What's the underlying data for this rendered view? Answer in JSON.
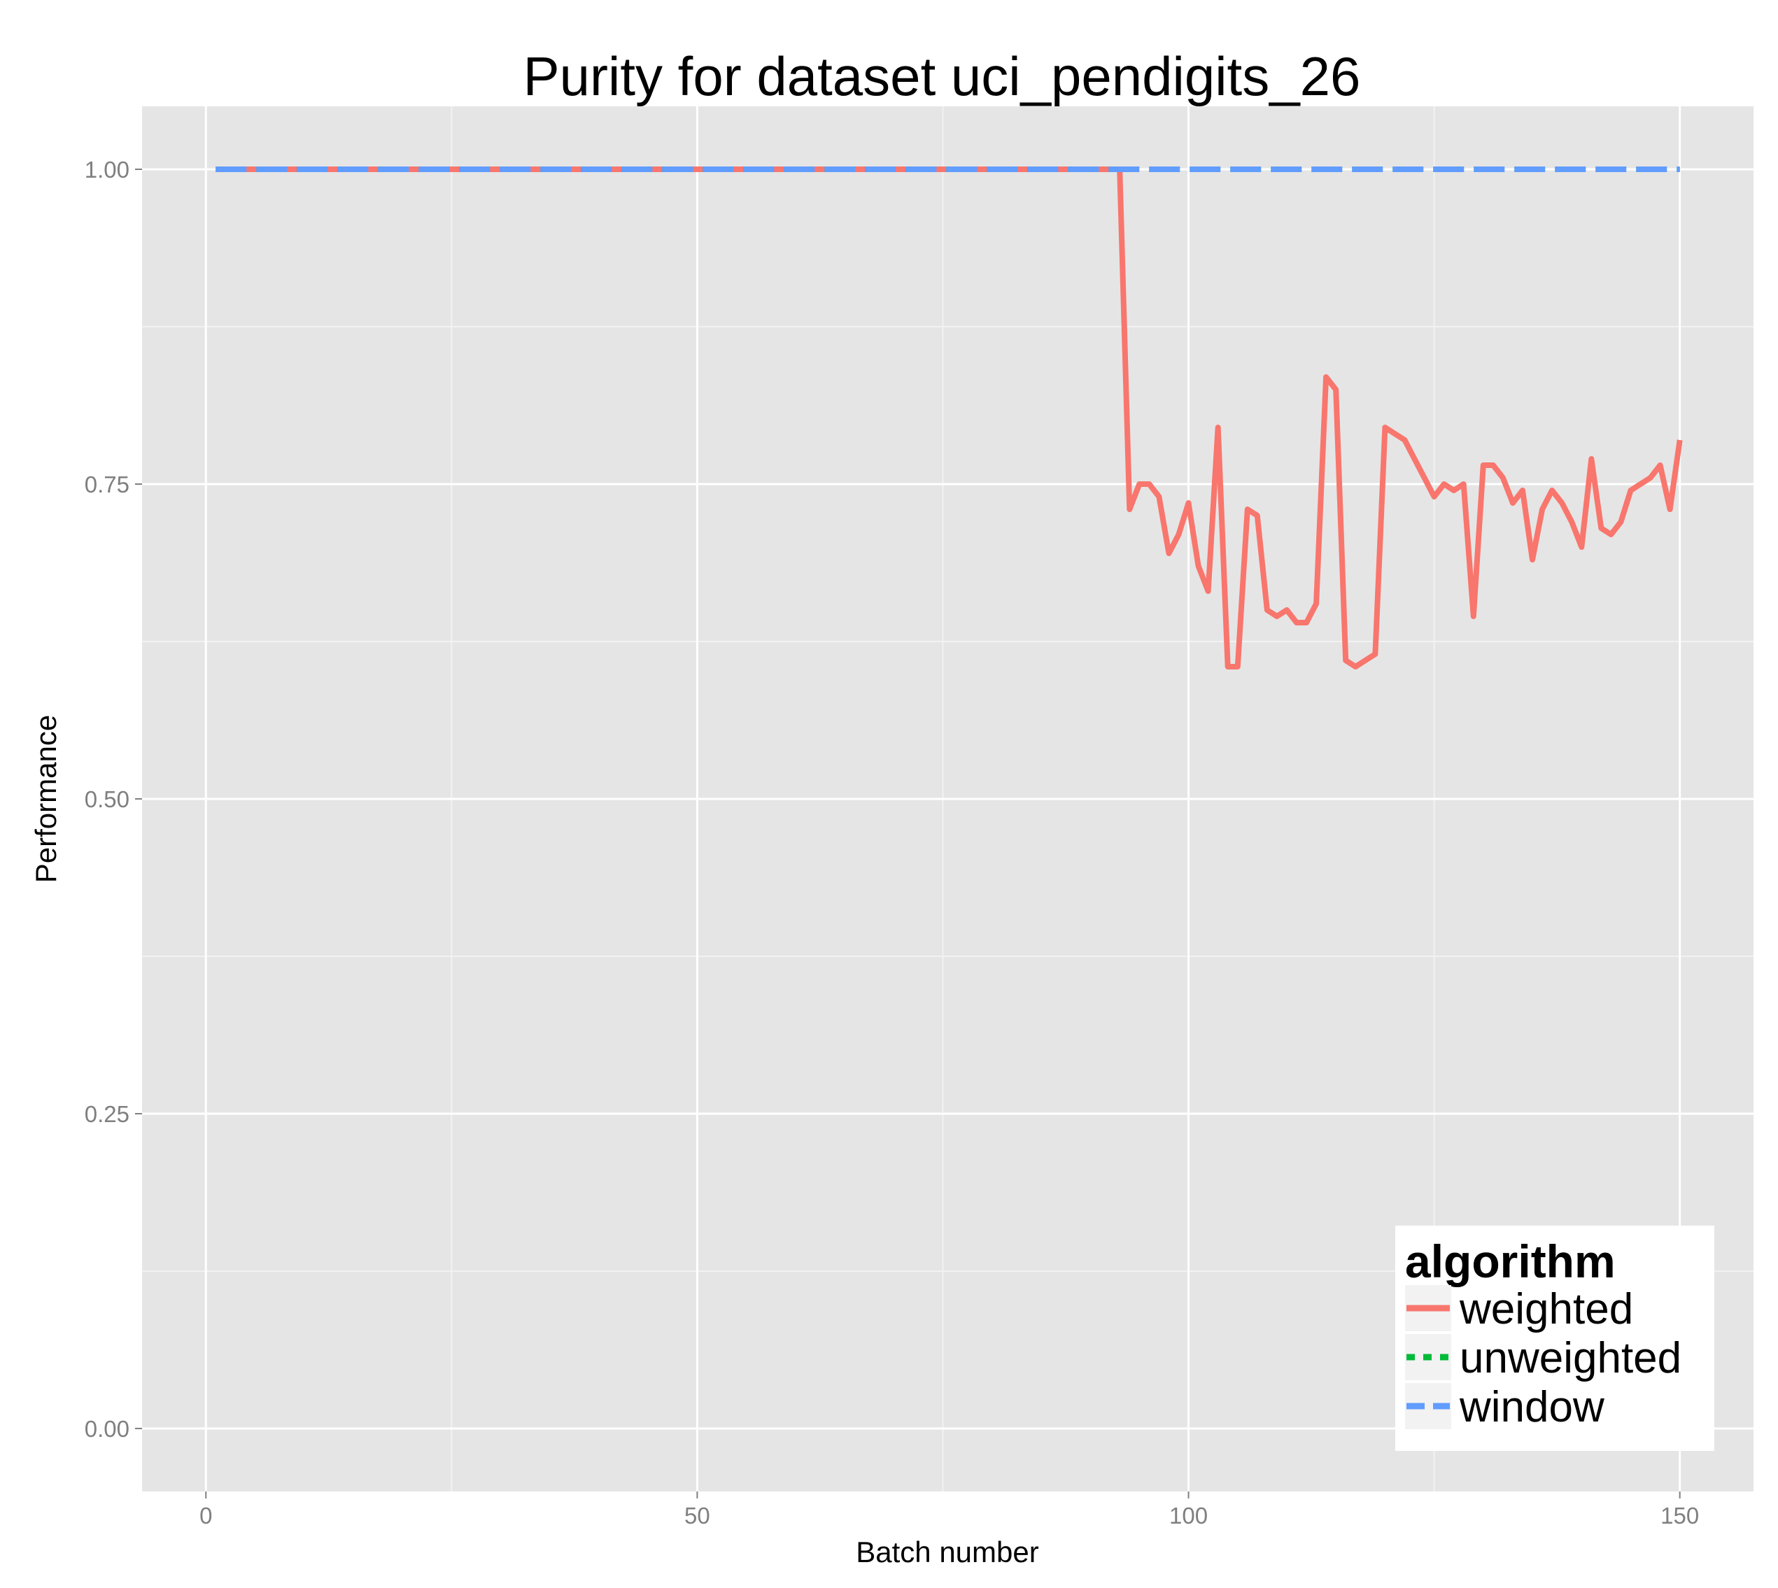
{
  "chart_data": {
    "type": "line",
    "title": "Purity for dataset uci_pendigits_26",
    "xlabel": "Batch number",
    "ylabel": "Performance",
    "xlim": [
      -6.5,
      157.5
    ],
    "ylim": [
      -0.05,
      1.05
    ],
    "x_ticks": [
      0,
      50,
      100,
      150
    ],
    "x_tick_labels": [
      "0",
      "50",
      "100",
      "150"
    ],
    "y_ticks": [
      0,
      0.25,
      0.5,
      0.75,
      1.0
    ],
    "y_tick_labels": [
      "0.00",
      "0.25",
      "0.50",
      "0.75",
      "1.00"
    ],
    "grid": true,
    "legend": {
      "title": "algorithm",
      "position": "bottom-right",
      "items": [
        "weighted",
        "unweighted",
        "window"
      ]
    },
    "series": [
      {
        "name": "weighted",
        "color": "#F8766D",
        "dash": "solid",
        "x": [
          1,
          2,
          3,
          4,
          5,
          6,
          7,
          8,
          9,
          10,
          11,
          12,
          13,
          14,
          15,
          16,
          17,
          18,
          19,
          20,
          21,
          22,
          23,
          24,
          25,
          26,
          27,
          28,
          29,
          30,
          31,
          32,
          33,
          34,
          35,
          36,
          37,
          38,
          39,
          40,
          41,
          42,
          43,
          44,
          45,
          46,
          47,
          48,
          49,
          50,
          51,
          52,
          53,
          54,
          55,
          56,
          57,
          58,
          59,
          60,
          61,
          62,
          63,
          64,
          65,
          66,
          67,
          68,
          69,
          70,
          71,
          72,
          73,
          74,
          75,
          76,
          77,
          78,
          79,
          80,
          81,
          82,
          83,
          84,
          85,
          86,
          87,
          88,
          89,
          90,
          91,
          92,
          93,
          94,
          95,
          96,
          97,
          98,
          99,
          100,
          101,
          102,
          103,
          104,
          105,
          106,
          107,
          108,
          109,
          110,
          111,
          112,
          113,
          114,
          115,
          116,
          117,
          118,
          119,
          120,
          121,
          122,
          123,
          124,
          125,
          126,
          127,
          128,
          129,
          130,
          131,
          132,
          133,
          134,
          135,
          136,
          137,
          138,
          139,
          140,
          141,
          142,
          143,
          144,
          145,
          146,
          147,
          148,
          149,
          150
        ],
        "values": [
          1,
          1,
          1,
          1,
          1,
          1,
          1,
          1,
          1,
          1,
          1,
          1,
          1,
          1,
          1,
          1,
          1,
          1,
          1,
          1,
          1,
          1,
          1,
          1,
          1,
          1,
          1,
          1,
          1,
          1,
          1,
          1,
          1,
          1,
          1,
          1,
          1,
          1,
          1,
          1,
          1,
          1,
          1,
          1,
          1,
          1,
          1,
          1,
          1,
          1,
          1,
          1,
          1,
          1,
          1,
          1,
          1,
          1,
          1,
          1,
          1,
          1,
          1,
          1,
          1,
          1,
          1,
          1,
          1,
          1,
          1,
          1,
          1,
          1,
          1,
          1,
          1,
          1,
          1,
          1,
          1,
          1,
          1,
          1,
          1,
          1,
          1,
          1,
          1,
          1,
          1,
          1,
          1,
          0.73,
          0.75,
          0.75,
          0.74,
          0.695,
          0.71,
          0.735,
          0.685,
          0.665,
          0.795,
          0.605,
          0.605,
          0.73,
          0.725,
          0.65,
          0.645,
          0.65,
          0.64,
          0.64,
          0.655,
          0.835,
          0.825,
          0.61,
          0.605,
          0.61,
          0.615,
          0.795,
          0.79,
          0.785,
          0.77,
          0.755,
          0.74,
          0.75,
          0.745,
          0.75,
          0.645,
          0.765,
          0.765,
          0.755,
          0.735,
          0.745,
          0.69,
          0.73,
          0.745,
          0.735,
          0.72,
          0.7,
          0.77,
          0.715,
          0.71,
          0.72,
          0.745,
          0.75,
          0.755,
          0.765,
          0.73,
          0.785
        ]
      },
      {
        "name": "unweighted",
        "color": "#00BA38",
        "dash": "dotted",
        "x": [
          1,
          150
        ],
        "values": [
          1,
          1
        ]
      },
      {
        "name": "window",
        "color": "#619CFF",
        "dash": "dashed",
        "x": [
          1,
          150
        ],
        "values": [
          1,
          1
        ]
      }
    ]
  }
}
